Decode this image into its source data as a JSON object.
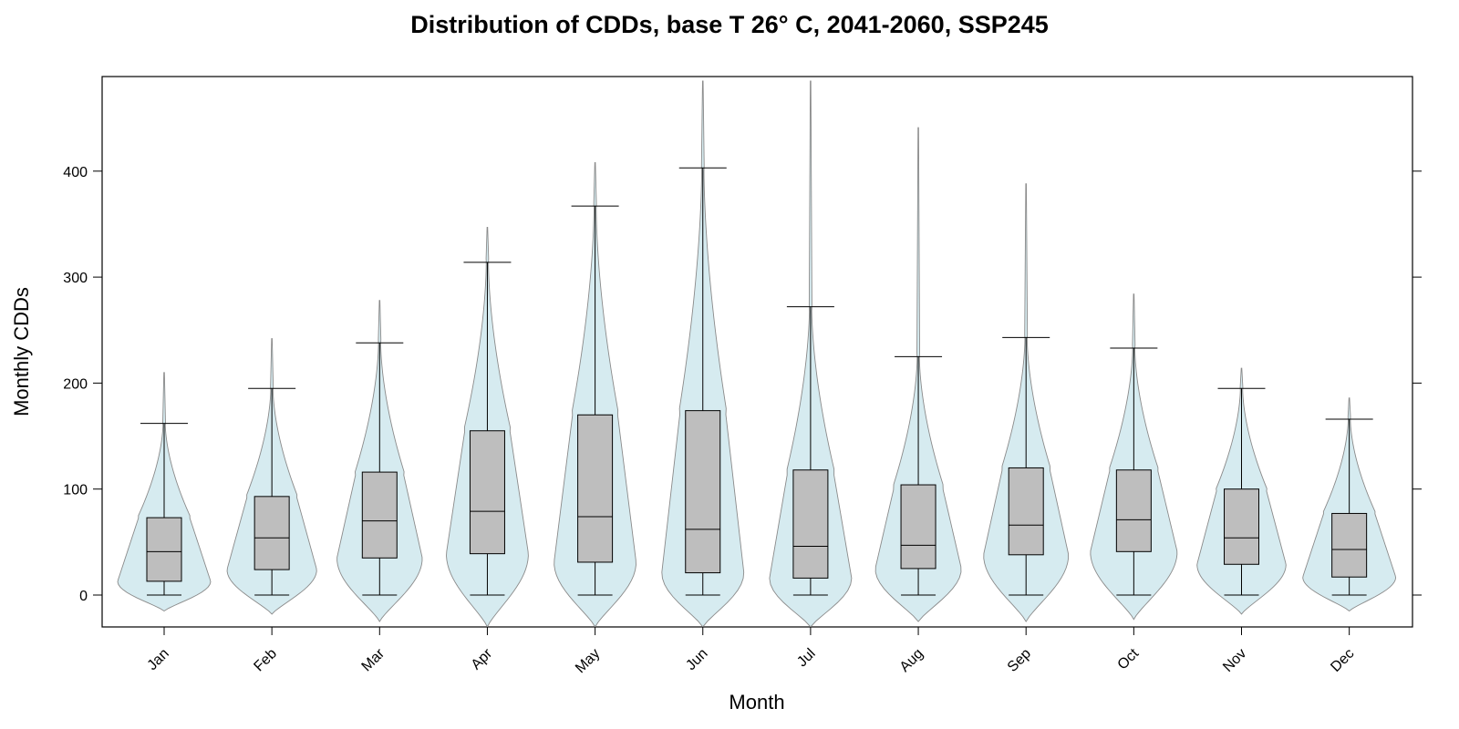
{
  "chart_data": {
    "type": "violin",
    "title": "Distribution of CDDs, base T 26° C, 2041-2060, SSP245",
    "xlabel": "Month",
    "ylabel": "Monthly CDDs",
    "ylim": [
      -30,
      485
    ],
    "yticks": [
      0,
      100,
      200,
      300,
      400
    ],
    "grid": false,
    "categories": [
      "Jan",
      "Feb",
      "Mar",
      "Apr",
      "May",
      "Jun",
      "Jul",
      "Aug",
      "Sep",
      "Oct",
      "Nov",
      "Dec"
    ],
    "box_stats": [
      {
        "month": "Jan",
        "whisker_low": 0,
        "q1": 13,
        "median": 41,
        "q3": 73,
        "whisker_high": 162,
        "violin_min": -15,
        "violin_max": 210
      },
      {
        "month": "Feb",
        "whisker_low": 0,
        "q1": 24,
        "median": 54,
        "q3": 93,
        "whisker_high": 195,
        "violin_min": -18,
        "violin_max": 242
      },
      {
        "month": "Mar",
        "whisker_low": 0,
        "q1": 35,
        "median": 70,
        "q3": 116,
        "whisker_high": 238,
        "violin_min": -25,
        "violin_max": 278
      },
      {
        "month": "Apr",
        "whisker_low": 0,
        "q1": 39,
        "median": 79,
        "q3": 155,
        "whisker_high": 314,
        "violin_min": -30,
        "violin_max": 347
      },
      {
        "month": "May",
        "whisker_low": 0,
        "q1": 31,
        "median": 74,
        "q3": 170,
        "whisker_high": 367,
        "violin_min": -30,
        "violin_max": 408
      },
      {
        "month": "Jun",
        "whisker_low": 0,
        "q1": 21,
        "median": 62,
        "q3": 174,
        "whisker_high": 403,
        "violin_min": -30,
        "violin_max": 485
      },
      {
        "month": "Jul",
        "whisker_low": 0,
        "q1": 16,
        "median": 46,
        "q3": 118,
        "whisker_high": 272,
        "violin_min": -30,
        "violin_max": 485
      },
      {
        "month": "Aug",
        "whisker_low": 0,
        "q1": 25,
        "median": 47,
        "q3": 104,
        "whisker_high": 225,
        "violin_min": -25,
        "violin_max": 441
      },
      {
        "month": "Sep",
        "whisker_low": 0,
        "q1": 38,
        "median": 66,
        "q3": 120,
        "whisker_high": 243,
        "violin_min": -25,
        "violin_max": 388
      },
      {
        "month": "Oct",
        "whisker_low": 0,
        "q1": 41,
        "median": 71,
        "q3": 118,
        "whisker_high": 233,
        "violin_min": -23,
        "violin_max": 284
      },
      {
        "month": "Nov",
        "whisker_low": 0,
        "q1": 29,
        "median": 54,
        "q3": 100,
        "whisker_high": 195,
        "violin_min": -18,
        "violin_max": 214
      },
      {
        "month": "Dec",
        "whisker_low": 0,
        "q1": 17,
        "median": 43,
        "q3": 77,
        "whisker_high": 166,
        "violin_min": -15,
        "violin_max": 186
      }
    ],
    "colors": {
      "violin_fill": "#d6ebf0",
      "violin_stroke": "#8a8a8a",
      "box_fill": "#bebebe",
      "box_stroke": "#000000"
    }
  }
}
